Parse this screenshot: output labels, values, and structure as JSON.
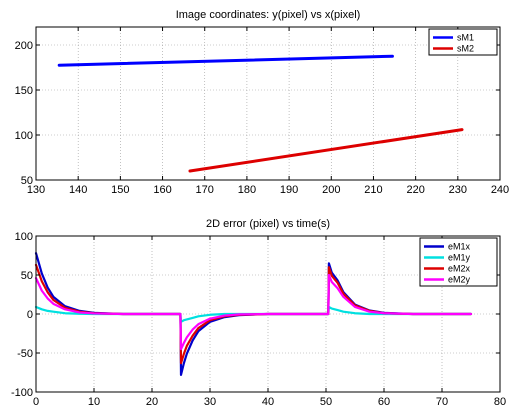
{
  "chart_data": [
    {
      "type": "line",
      "title": "Image coordinates: y(pixel) vs x(pixel)",
      "xlabel": "",
      "ylabel": "",
      "xlim": [
        130,
        240
      ],
      "ylim": [
        50,
        220
      ],
      "xticks": [
        130,
        140,
        150,
        160,
        170,
        180,
        190,
        200,
        210,
        220,
        230,
        240
      ],
      "yticks": [
        50,
        100,
        150,
        200
      ],
      "grid": true,
      "legend_position": "top-right",
      "series": [
        {
          "name": "sM1",
          "color": "#0000ff",
          "x": [
            135.5,
            214.5
          ],
          "y": [
            177.5,
            187.5
          ]
        },
        {
          "name": "sM2",
          "color": "#dd0000",
          "x": [
            166.5,
            231
          ],
          "y": [
            60,
            106
          ]
        }
      ]
    },
    {
      "type": "line",
      "title": "2D error (pixel) vs time(s)",
      "xlabel": "",
      "ylabel": "",
      "xlim": [
        0,
        80
      ],
      "ylim": [
        -100,
        100
      ],
      "xticks": [
        0,
        10,
        20,
        30,
        40,
        50,
        60,
        70,
        80
      ],
      "yticks": [
        -100,
        -50,
        0,
        50,
        100
      ],
      "grid": true,
      "legend_position": "top-right",
      "time": [
        0,
        1,
        2,
        3,
        5,
        7.5,
        10,
        15,
        24.9,
        25,
        25.5,
        26,
        27,
        28,
        30,
        32.5,
        35,
        40,
        50.4,
        50.5,
        51,
        52,
        53,
        55,
        57.5,
        60,
        65,
        75
      ],
      "series": [
        {
          "name": "eM1x",
          "color": "#0000cc",
          "values": [
            78,
            52,
            34,
            22,
            10,
            4,
            1.5,
            0,
            0,
            -78,
            -63,
            -51,
            -34,
            -22,
            -10,
            -4,
            -1.5,
            0,
            0,
            65,
            53,
            43,
            28,
            12,
            4.5,
            1.5,
            0,
            0
          ]
        },
        {
          "name": "eM1y",
          "color": "#00e0e0",
          "values": [
            9,
            6,
            4,
            3,
            1,
            0.3,
            0,
            0,
            0,
            -10,
            -8,
            -7,
            -5,
            -3,
            -1,
            0,
            0,
            0,
            0,
            9,
            7,
            5,
            3,
            1,
            0,
            0,
            0,
            0
          ]
        },
        {
          "name": "eM2x",
          "color": "#dd0000",
          "values": [
            63,
            42,
            28,
            18,
            8,
            3,
            1,
            0,
            0,
            -63,
            -51,
            -41,
            -28,
            -18,
            -8,
            -3,
            -1,
            0,
            0,
            60,
            49,
            40,
            26,
            11,
            4,
            1,
            0,
            0
          ]
        },
        {
          "name": "eM2y",
          "color": "#ff00ff",
          "values": [
            46,
            30,
            20,
            13,
            6,
            2,
            0.7,
            0,
            0,
            -45,
            -37,
            -30,
            -20,
            -13,
            -6,
            -2,
            -0.5,
            0,
            0,
            50,
            41,
            33,
            22,
            9,
            3,
            1,
            0,
            0
          ]
        }
      ]
    }
  ]
}
